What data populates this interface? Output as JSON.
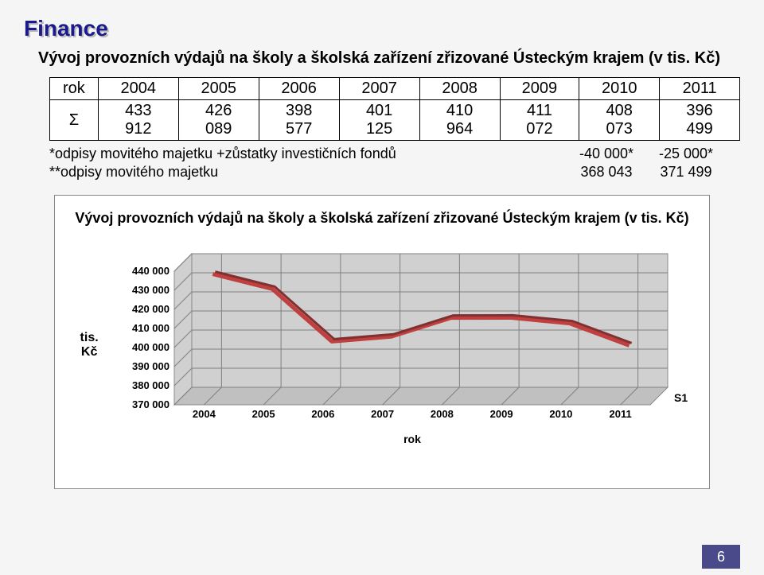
{
  "title": "Finance",
  "subtitle": "Vývoj provozních výdajů na školy a školská zařízení zřizované Ústeckým krajem (v tis. Kč)",
  "table": {
    "header": [
      "rok",
      "2004",
      "2005",
      "2006",
      "2007",
      "2008",
      "2009",
      "2010",
      "2011"
    ],
    "row": [
      "Σ",
      "433 912",
      "426 089",
      "398 577",
      "401 125",
      "410 964",
      "411 072",
      "408 073",
      "396 499"
    ]
  },
  "footnotes": {
    "line1_label": "*odpisy movitého majetku +zůstatky investičních fondů",
    "line1_v1": "-40 000*",
    "line1_v2": "-25 000*",
    "line2_label": "**odpisy movitého majetku",
    "line2_v1": "368 043",
    "line2_v2": "371 499"
  },
  "chart": {
    "title": "Vývoj provozních výdajů na školy a školská zařízení zřizované Ústeckým krajem (v tis. Kč)",
    "type": "3d-line",
    "categories": [
      "2004",
      "2005",
      "2006",
      "2007",
      "2008",
      "2009",
      "2010",
      "2011"
    ],
    "values": [
      433912,
      426089,
      398577,
      401125,
      410964,
      411072,
      408073,
      396499
    ],
    "ylabel": "tis. Kč",
    "xlabel": "rok",
    "ylim": [
      370000,
      440000
    ],
    "ytick_step": 10000,
    "ytick_labels": [
      "370 000",
      "380 000",
      "390 000",
      "400 000",
      "410 000",
      "420 000",
      "430 000",
      "440 000"
    ],
    "series_label": "S1",
    "line_color": "#c04040",
    "line_width": 3,
    "grid_color": "#808080",
    "floor_color": "#c0c0c0",
    "wall_color": "#d0d0d0",
    "bg_color": "#ffffff",
    "font_size_ticks": 13,
    "font_size_title": 18
  },
  "page_number": "6"
}
